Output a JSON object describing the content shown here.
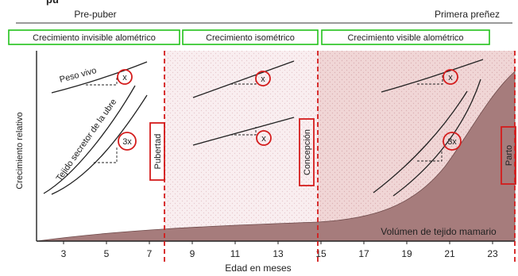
{
  "header": {
    "title_fragment": "pu",
    "period_left": "Pre-puber",
    "period_right": "Primera preñez"
  },
  "stages": [
    "Crecimiento invisible alométrico",
    "Crecimiento isométrico",
    "Crecimiento visible alométrico"
  ],
  "events": {
    "puberty": "Pubertad",
    "conception": "Concepción",
    "calving": "Parto"
  },
  "curves": {
    "body_weight": "Peso vivo",
    "secretory_tissue": "Tejido secretor de la ubre",
    "mammary_volume": "Volúmen de tejido mamario"
  },
  "ratios": {
    "body": "x",
    "udder": "3x"
  },
  "axes": {
    "ylabel": "Crecimiento relativo",
    "xlabel": "Edad en meses",
    "ticks": [
      "3",
      "5",
      "7",
      "9",
      "11",
      "13",
      "15",
      "17",
      "19",
      "21",
      "23"
    ]
  },
  "colors": {
    "stage_box": "#22c21a",
    "marker": "#d41c1c",
    "isometric_zone": "#f9eef0",
    "visible_zone": "#f0d6d6",
    "mammary_fill": "#a67c7c"
  }
}
